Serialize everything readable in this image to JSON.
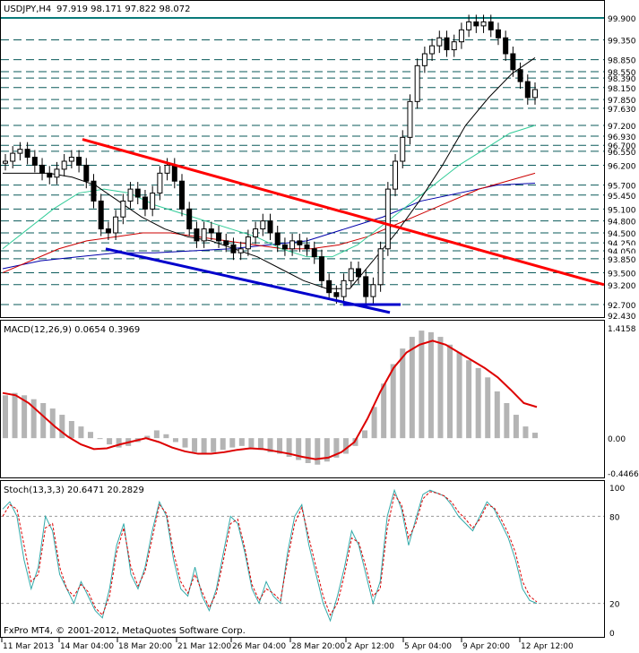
{
  "header": {
    "symbol": "USDJPY,H4",
    "ohlc": "97.919 98.171 97.822 98.072"
  },
  "macd_header": "MACD(12,26,9) 0.0654 0.3969",
  "stoch_header": "Stoch(13,3,3) 20.6471 20.2829",
  "footer": "FxPro MT4, © 2001-2012, MetaQuotes Software Corp.",
  "colors": {
    "bg": "#ffffff",
    "grid_dash": "#0a5a5a",
    "candle": "#000000",
    "red_trend": "#ff0000",
    "blue_trend": "#0000cc",
    "top_line": "#0a7a7a",
    "ma_black": "#000000",
    "ma_green": "#33cc99",
    "ma_red": "#cc0000",
    "ma_blue": "#0000aa",
    "macd_hist": "#b4b4b4",
    "macd_signal": "#dd0000",
    "stoch_main": "#33aaaa",
    "stoch_signal": "#dd0000"
  },
  "chart_data": [
    {
      "type": "line",
      "panel": "price",
      "ylim": [
        92.43,
        99.9
      ],
      "y_ticks": [
        99.9,
        99.35,
        98.85,
        98.55,
        98.39,
        98.15,
        97.85,
        97.63,
        97.2,
        96.93,
        96.7,
        96.55,
        96.2,
        95.7,
        95.45,
        95.1,
        94.8,
        94.5,
        94.25,
        94.05,
        93.85,
        93.5,
        93.2,
        92.7,
        92.43
      ],
      "y_ticks_hidden_behind": [
        "98.390",
        "97.630",
        "96.930",
        "96.550"
      ],
      "x_labels": [
        "11 Mar 2013",
        "14 Mar 04:00",
        "18 Mar 20:00",
        "21 Mar 12:00",
        "26 Mar 04:00",
        "28 Mar 20:00",
        "2 Apr 12:00",
        "5 Apr 04:00",
        "9 Apr 20:00",
        "12 Apr 12:00"
      ],
      "close": [
        96.3,
        96.5,
        96.6,
        96.4,
        96.2,
        96.0,
        95.9,
        96.1,
        96.3,
        96.4,
        96.2,
        95.8,
        95.3,
        94.6,
        94.5,
        94.9,
        95.3,
        95.6,
        95.4,
        95.1,
        95.5,
        96.0,
        96.2,
        95.8,
        95.1,
        94.6,
        94.3,
        94.6,
        94.5,
        94.3,
        94.2,
        94.0,
        94.1,
        94.4,
        94.6,
        94.8,
        94.5,
        94.2,
        94.1,
        94.3,
        94.2,
        94.1,
        93.9,
        93.3,
        93.0,
        92.9,
        93.3,
        93.6,
        93.4,
        92.9,
        93.2,
        94.1,
        95.6,
        96.3,
        96.9,
        97.8,
        98.7,
        99.0,
        99.2,
        99.4,
        99.1,
        99.3,
        99.6,
        99.8,
        99.7,
        99.8,
        99.6,
        99.4,
        99.0,
        98.6,
        98.3,
        97.9,
        98.1
      ],
      "ma_black": [
        96.0,
        96.0,
        96.0,
        95.9,
        95.7,
        95.3,
        94.9,
        94.6,
        94.4,
        94.3,
        94.1,
        93.9,
        93.6,
        93.3,
        93.1,
        93.1,
        93.8,
        94.5,
        95.3,
        96.2,
        97.2,
        97.9,
        98.5,
        98.9
      ],
      "ma_green": [
        94.1,
        94.6,
        95.1,
        95.5,
        95.6,
        95.5,
        95.2,
        95.0,
        94.8,
        94.6,
        94.4,
        94.1,
        93.9,
        93.9,
        94.2,
        94.7,
        95.2,
        95.7,
        96.2,
        96.6,
        97.0,
        97.2
      ],
      "ma_red": [
        93.5,
        93.8,
        94.1,
        94.3,
        94.4,
        94.5,
        94.5,
        94.4,
        94.3,
        94.2,
        94.1,
        94.1,
        94.2,
        94.4,
        94.7,
        95.0,
        95.3,
        95.6,
        95.8,
        96.0
      ],
      "ma_blue": [
        93.6,
        93.8,
        93.9,
        94.0,
        94.0,
        94.05,
        94.1,
        94.2,
        94.3,
        94.6,
        94.9,
        95.3,
        95.5,
        95.7,
        95.75
      ],
      "trendline_red": [
        [
          96.85,
          "start"
        ],
        [
          93.2,
          "end"
        ]
      ],
      "trendline_blue": [
        [
          94.1,
          "start"
        ],
        [
          92.5,
          "end"
        ]
      ]
    },
    {
      "type": "bar",
      "panel": "macd",
      "title": "MACD(12,26,9) 0.0654 0.3969",
      "ylim": [
        -0.4466,
        1.4158
      ],
      "y_ticks": [
        "1.4158",
        "0.00",
        "-0.4466"
      ],
      "histogram": [
        0.55,
        0.58,
        0.55,
        0.5,
        0.45,
        0.38,
        0.3,
        0.22,
        0.15,
        0.08,
        0.0,
        -0.08,
        -0.12,
        -0.1,
        -0.05,
        0.03,
        0.1,
        0.05,
        -0.05,
        -0.12,
        -0.18,
        -0.2,
        -0.18,
        -0.15,
        -0.12,
        -0.1,
        -0.12,
        -0.15,
        -0.18,
        -0.2,
        -0.24,
        -0.28,
        -0.32,
        -0.34,
        -0.3,
        -0.25,
        -0.2,
        -0.1,
        0.1,
        0.4,
        0.7,
        0.95,
        1.15,
        1.3,
        1.38,
        1.36,
        1.3,
        1.2,
        1.1,
        1.0,
        0.9,
        0.78,
        0.6,
        0.45,
        0.3,
        0.15,
        0.07
      ],
      "signal": [
        0.58,
        0.55,
        0.45,
        0.3,
        0.15,
        0.02,
        -0.08,
        -0.14,
        -0.13,
        -0.08,
        -0.04,
        0.0,
        -0.05,
        -0.12,
        -0.17,
        -0.2,
        -0.2,
        -0.18,
        -0.15,
        -0.13,
        -0.14,
        -0.17,
        -0.2,
        -0.24,
        -0.27,
        -0.25,
        -0.18,
        -0.05,
        0.25,
        0.6,
        0.9,
        1.1,
        1.2,
        1.25,
        1.2,
        1.1,
        1.0,
        0.9,
        0.78,
        0.62,
        0.45,
        0.4
      ]
    },
    {
      "type": "line",
      "panel": "stochastic",
      "title": "Stoch(13,3,3) 20.6471 20.2829",
      "ylim": [
        0,
        100
      ],
      "y_ticks": [
        "100",
        "80",
        "20",
        "0"
      ],
      "main": [
        85,
        90,
        80,
        50,
        30,
        45,
        80,
        70,
        40,
        30,
        20,
        35,
        25,
        15,
        10,
        30,
        60,
        75,
        40,
        30,
        45,
        70,
        90,
        80,
        50,
        30,
        25,
        45,
        25,
        15,
        30,
        55,
        80,
        75,
        55,
        30,
        20,
        35,
        25,
        20,
        55,
        80,
        88,
        60,
        40,
        20,
        8,
        25,
        45,
        70,
        60,
        40,
        20,
        35,
        80,
        98,
        85,
        60,
        78,
        95,
        98,
        96,
        94,
        88,
        80,
        75,
        70,
        80,
        90,
        85,
        75,
        65,
        50,
        30,
        22,
        20
      ],
      "signal": [
        80,
        88,
        85,
        60,
        35,
        40,
        72,
        75,
        45,
        30,
        25,
        33,
        28,
        17,
        12,
        25,
        55,
        72,
        45,
        32,
        42,
        65,
        88,
        82,
        55,
        35,
        27,
        40,
        28,
        17,
        27,
        50,
        75,
        78,
        58,
        33,
        22,
        30,
        27,
        22,
        50,
        75,
        86,
        65,
        45,
        25,
        12,
        20,
        40,
        65,
        62,
        45,
        25,
        30,
        72,
        95,
        88,
        65,
        75,
        92,
        97,
        96,
        94,
        90,
        83,
        78,
        72,
        78,
        88,
        86,
        78,
        68,
        55,
        35,
        25,
        21
      ]
    }
  ]
}
